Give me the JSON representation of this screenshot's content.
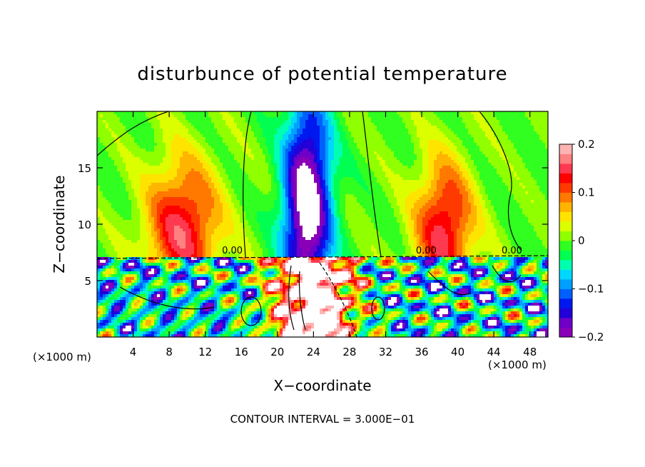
{
  "chart_data": {
    "type": "heatmap",
    "title": "disturbunce of potential temperature",
    "xlabel": "X−coordinate",
    "ylabel": "Z−coordinate",
    "x_unit": "(×1000 m)",
    "x_unit_right": "(×1000 m)",
    "xlim": [
      0,
      50
    ],
    "ylim": [
      0,
      20
    ],
    "x_ticks": [
      4,
      8,
      12,
      16,
      20,
      24,
      28,
      32,
      36,
      40,
      44,
      48
    ],
    "x_tick_labels": [
      "4",
      "8",
      "12",
      "16",
      "20",
      "24",
      "28",
      "32",
      "36",
      "40",
      "44",
      "48"
    ],
    "y_ticks": [
      5,
      10,
      15
    ],
    "y_tick_labels": [
      "5",
      "10",
      "15"
    ],
    "colorbar": {
      "range": [
        -0.2,
        0.2
      ],
      "labels": [
        {
          "value": 0.2,
          "text": "0.2"
        },
        {
          "value": 0.1,
          "text": "0.1"
        },
        {
          "value": 0,
          "text": "0"
        },
        {
          "value": -0.1,
          "text": "−0.1"
        },
        {
          "value": -0.2,
          "text": "−0.2"
        }
      ],
      "colors": [
        "#8a00b8",
        "#6e00c8",
        "#2200d8",
        "#0018f0",
        "#0060ff",
        "#00a0ff",
        "#00d8ff",
        "#00ffb0",
        "#00ff50",
        "#30ff20",
        "#90ff00",
        "#dcff00",
        "#ffe400",
        "#ffb400",
        "#ff7800",
        "#ff3a00",
        "#ff0000",
        "#ff3a50",
        "#ff8080",
        "#ffb4b4"
      ]
    },
    "contour_labels": [
      {
        "x": 15,
        "z": 7.4,
        "text": "0.00"
      },
      {
        "x": 36.5,
        "z": 7.4,
        "text": "0.00"
      },
      {
        "x": 46,
        "z": 7.4,
        "text": "0.00"
      }
    ],
    "note": "CONTOUR INTERVAL = 3.000E−01"
  }
}
